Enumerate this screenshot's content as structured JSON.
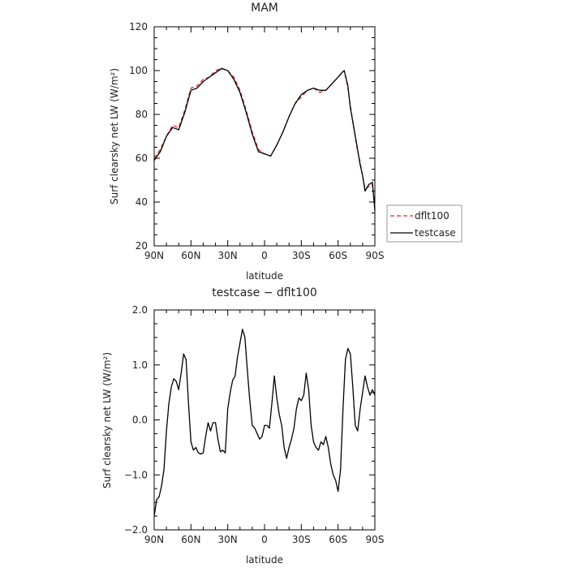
{
  "chart_data": [
    {
      "type": "line",
      "title": "MAM",
      "xlabel": "latitude",
      "ylabel": "Surf clearsky net LW (W/m²)",
      "xlim": [
        90,
        -90
      ],
      "ylim": [
        20,
        120
      ],
      "xticks": [
        {
          "value": 90,
          "label": "90N"
        },
        {
          "value": 60,
          "label": "60N"
        },
        {
          "value": 30,
          "label": "30N"
        },
        {
          "value": 0,
          "label": "0"
        },
        {
          "value": -30,
          "label": "30S"
        },
        {
          "value": -60,
          "label": "60S"
        },
        {
          "value": -90,
          "label": "90S"
        }
      ],
      "yticks": [
        {
          "value": 20,
          "label": "20"
        },
        {
          "value": 40,
          "label": "40"
        },
        {
          "value": 60,
          "label": "60"
        },
        {
          "value": 80,
          "label": "80"
        },
        {
          "value": 100,
          "label": "100"
        },
        {
          "value": 120,
          "label": "120"
        }
      ],
      "x": [
        90,
        85,
        80,
        75,
        70,
        65,
        60,
        55,
        50,
        45,
        40,
        35,
        30,
        25,
        20,
        15,
        10,
        5,
        0,
        -5,
        -10,
        -15,
        -20,
        -25,
        -30,
        -35,
        -40,
        -45,
        -50,
        -55,
        -60,
        -63,
        -65,
        -68,
        -70,
        -75,
        -78,
        -80,
        -82,
        -85,
        -88,
        -90
      ],
      "series": [
        {
          "name": "dflt100",
          "color": "#d62728",
          "dash": true,
          "values": [
            60,
            64,
            70,
            75,
            74,
            82,
            92,
            93,
            96,
            97,
            100,
            101,
            100,
            97,
            91,
            82,
            72,
            64,
            62,
            61,
            66,
            72,
            79,
            85,
            88,
            91,
            92,
            90,
            91,
            94,
            97,
            99,
            100,
            92,
            84,
            66,
            58,
            52,
            46,
            47,
            48,
            38
          ]
        },
        {
          "name": "testcase",
          "color": "#000000",
          "dash": false,
          "values": [
            59,
            63,
            70,
            74,
            73,
            81,
            91,
            92,
            95,
            97,
            99,
            101,
            100,
            96,
            90,
            81,
            71,
            63,
            62,
            61,
            66,
            72,
            79,
            85,
            89,
            91,
            92,
            91,
            91,
            94,
            97,
            99,
            100,
            93,
            83,
            67,
            57,
            52,
            45,
            48,
            49,
            36
          ]
        }
      ],
      "legend": {
        "position": "right"
      }
    },
    {
      "type": "line",
      "title": "testcase − dflt100",
      "xlabel": "latitude",
      "ylabel": "Surf clearsky net LW (W/m²)",
      "xlim": [
        90,
        -90
      ],
      "ylim": [
        -2.0,
        2.0
      ],
      "xticks": [
        {
          "value": 90,
          "label": "90N"
        },
        {
          "value": 60,
          "label": "60N"
        },
        {
          "value": 30,
          "label": "30N"
        },
        {
          "value": 0,
          "label": "0"
        },
        {
          "value": -30,
          "label": "30S"
        },
        {
          "value": -60,
          "label": "60S"
        },
        {
          "value": -90,
          "label": "90S"
        }
      ],
      "yticks": [
        {
          "value": -2.0,
          "label": "−2.0"
        },
        {
          "value": -1.0,
          "label": "−1.0"
        },
        {
          "value": 0.0,
          "label": "0.0"
        },
        {
          "value": 1.0,
          "label": "1.0"
        },
        {
          "value": 2.0,
          "label": "2.0"
        }
      ],
      "x": [
        90,
        88,
        86,
        84,
        82,
        80,
        78,
        76,
        74,
        72,
        70,
        68,
        66,
        64,
        62,
        60,
        58,
        56,
        54,
        52,
        50,
        48,
        46,
        44,
        42,
        40,
        38,
        36,
        34,
        32,
        30,
        28,
        26,
        24,
        22,
        20,
        18,
        16,
        14,
        12,
        10,
        8,
        6,
        4,
        2,
        0,
        -2,
        -4,
        -6,
        -8,
        -10,
        -12,
        -14,
        -16,
        -18,
        -20,
        -22,
        -24,
        -26,
        -28,
        -30,
        -32,
        -34,
        -36,
        -38,
        -40,
        -42,
        -44,
        -46,
        -48,
        -50,
        -52,
        -54,
        -56,
        -58,
        -60,
        -62,
        -64,
        -66,
        -68,
        -70,
        -72,
        -74,
        -76,
        -78,
        -80,
        -82,
        -84,
        -86,
        -88,
        -90
      ],
      "series": [
        {
          "name": "",
          "color": "#000000",
          "dash": false,
          "values": [
            -1.75,
            -1.45,
            -1.4,
            -1.2,
            -0.9,
            -0.2,
            0.3,
            0.6,
            0.75,
            0.7,
            0.55,
            0.85,
            1.2,
            1.1,
            0.3,
            -0.4,
            -0.55,
            -0.5,
            -0.6,
            -0.62,
            -0.6,
            -0.3,
            -0.05,
            -0.2,
            -0.05,
            -0.05,
            -0.35,
            -0.58,
            -0.55,
            -0.6,
            0.2,
            0.5,
            0.72,
            0.8,
            1.15,
            1.4,
            1.65,
            1.5,
            0.9,
            0.35,
            -0.1,
            -0.15,
            -0.25,
            -0.35,
            -0.3,
            -0.1,
            -0.1,
            -0.15,
            0.3,
            0.8,
            0.4,
            0.1,
            -0.1,
            -0.5,
            -0.7,
            -0.5,
            -0.35,
            -0.15,
            0.2,
            0.4,
            0.35,
            0.45,
            0.85,
            0.55,
            -0.1,
            -0.4,
            -0.5,
            -0.55,
            -0.4,
            -0.45,
            -0.3,
            -0.5,
            -0.8,
            -1.0,
            -1.1,
            -1.3,
            -0.9,
            0.2,
            1.1,
            1.3,
            1.2,
            0.6,
            -0.1,
            -0.2,
            0.2,
            0.5,
            0.8,
            0.6,
            0.45,
            0.55,
            0.45
          ]
        }
      ]
    }
  ]
}
